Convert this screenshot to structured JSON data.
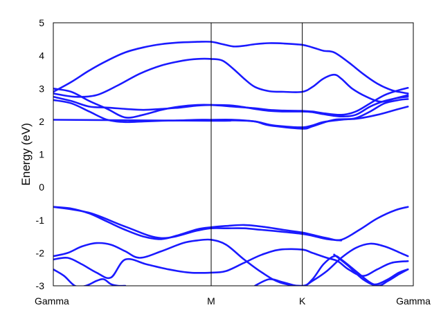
{
  "chart_data": {
    "type": "line",
    "title": "",
    "xlabel": "",
    "ylabel": "Energy (eV)",
    "ylim": [
      -3,
      5
    ],
    "yticks": [
      "5",
      "4",
      "3",
      "2",
      "1",
      "0",
      "-1",
      "-2",
      "-3"
    ],
    "yticks_values": [
      5,
      4,
      3,
      2,
      1,
      0,
      -1,
      -2,
      -3
    ],
    "xlim": [
      0,
      1
    ],
    "x_high_symmetry": [
      {
        "label": "Gamma",
        "x": 0.0
      },
      {
        "label": "M",
        "x": 0.4385
      },
      {
        "label": "K",
        "x": 0.6916
      },
      {
        "label": "Gamma",
        "x": 1.0
      }
    ],
    "grid": false,
    "line_color": "#1a1aff",
    "frame_color": "#000000",
    "series": [
      {
        "x": [
          0.0,
          0.05,
          0.1,
          0.15,
          0.2,
          0.25,
          0.3,
          0.35,
          0.4,
          0.4385,
          0.47,
          0.5,
          0.53,
          0.56,
          0.6,
          0.64,
          0.6916,
          0.72,
          0.75,
          0.78,
          0.82,
          0.86,
          0.9,
          0.94,
          0.97,
          0.985
        ],
        "values": [
          2.9,
          3.2,
          3.55,
          3.85,
          4.1,
          4.25,
          4.35,
          4.4,
          4.42,
          4.42,
          4.35,
          4.28,
          4.3,
          4.35,
          4.38,
          4.37,
          4.33,
          4.25,
          4.15,
          4.1,
          3.8,
          3.45,
          3.15,
          2.95,
          2.88,
          2.85
        ]
      },
      {
        "x": [
          0.0,
          0.06,
          0.12,
          0.18,
          0.24,
          0.3,
          0.36,
          0.4,
          0.4385,
          0.47,
          0.5,
          0.53,
          0.56,
          0.6,
          0.64,
          0.6916,
          0.72,
          0.75,
          0.78,
          0.8,
          0.83,
          0.87,
          0.91,
          0.95,
          0.985
        ],
        "values": [
          2.85,
          2.75,
          2.8,
          3.1,
          3.45,
          3.7,
          3.85,
          3.9,
          3.9,
          3.85,
          3.6,
          3.3,
          3.05,
          2.92,
          2.9,
          2.9,
          3.05,
          3.3,
          3.42,
          3.3,
          3.0,
          2.75,
          2.6,
          2.7,
          2.8
        ]
      },
      {
        "x": [
          0.0,
          0.05,
          0.1,
          0.15,
          0.2,
          0.25,
          0.3,
          0.35,
          0.4,
          0.4385,
          0.5,
          0.56,
          0.6,
          0.64,
          0.6916,
          0.72,
          0.75,
          0.8,
          0.84,
          0.88,
          0.92,
          0.96,
          0.985
        ],
        "values": [
          3.0,
          2.9,
          2.62,
          2.38,
          2.12,
          2.2,
          2.35,
          2.45,
          2.5,
          2.5,
          2.45,
          2.4,
          2.35,
          2.33,
          2.32,
          2.3,
          2.25,
          2.2,
          2.3,
          2.55,
          2.8,
          2.95,
          3.02
        ]
      },
      {
        "x": [
          0.0,
          0.05,
          0.1,
          0.15,
          0.2,
          0.25,
          0.3,
          0.35,
          0.4,
          0.4385,
          0.5,
          0.56,
          0.6,
          0.64,
          0.6916,
          0.72,
          0.75,
          0.8,
          0.84,
          0.88,
          0.92,
          0.96,
          0.985
        ],
        "values": [
          2.75,
          2.62,
          2.45,
          2.42,
          2.38,
          2.35,
          2.38,
          2.42,
          2.48,
          2.5,
          2.48,
          2.38,
          2.32,
          2.3,
          2.3,
          2.28,
          2.22,
          2.15,
          2.2,
          2.45,
          2.62,
          2.72,
          2.75
        ]
      },
      {
        "x": [
          0.0,
          0.05,
          0.1,
          0.15,
          0.2,
          0.25,
          0.3,
          0.35,
          0.4,
          0.4385,
          0.5,
          0.56,
          0.6,
          0.64,
          0.6916,
          0.72,
          0.75,
          0.8,
          0.84,
          0.88,
          0.92,
          0.96,
          0.985
        ],
        "values": [
          2.65,
          2.55,
          2.3,
          2.05,
          1.98,
          2.0,
          2.02,
          2.03,
          2.05,
          2.05,
          2.05,
          2.0,
          1.9,
          1.85,
          1.82,
          1.88,
          1.98,
          2.05,
          2.1,
          2.3,
          2.55,
          2.65,
          2.68
        ]
      },
      {
        "x": [
          0.0,
          0.4385,
          0.5,
          0.56,
          0.6,
          0.6916,
          0.72,
          0.78,
          0.84,
          0.9,
          0.95,
          0.985
        ],
        "values": [
          2.05,
          2.02,
          2.03,
          2.0,
          1.88,
          1.78,
          1.85,
          2.05,
          2.08,
          2.2,
          2.35,
          2.45
        ]
      },
      {
        "x": [
          0.0,
          0.05,
          0.1,
          0.15,
          0.2,
          0.25,
          0.3,
          0.35,
          0.4,
          0.4385,
          0.48,
          0.53,
          0.58,
          0.64,
          0.6916,
          0.72,
          0.76,
          0.8,
          0.85,
          0.9,
          0.95,
          0.985
        ],
        "values": [
          -0.6,
          -0.65,
          -0.8,
          -1.05,
          -1.3,
          -1.5,
          -1.58,
          -1.45,
          -1.28,
          -1.22,
          -1.18,
          -1.15,
          -1.2,
          -1.3,
          -1.38,
          -1.45,
          -1.55,
          -1.6,
          -1.3,
          -0.95,
          -0.7,
          -0.6
        ]
      },
      {
        "x": [
          0.0,
          0.1,
          0.2,
          0.3,
          0.4,
          0.4385,
          0.48,
          0.53,
          0.58,
          0.64,
          0.6916,
          0.72,
          0.76,
          0.8
        ],
        "values": [
          -0.6,
          -0.78,
          -1.2,
          -1.55,
          -1.32,
          -1.25,
          -1.25,
          -1.25,
          -1.3,
          -1.36,
          -1.42,
          -1.48,
          -1.58,
          -1.62
        ]
      },
      {
        "x": [
          0.0,
          0.04,
          0.08,
          0.12,
          0.16,
          0.2,
          0.24,
          0.3,
          0.36,
          0.4,
          0.4385,
          0.48,
          0.53,
          0.58,
          0.63,
          0.6916,
          0.72,
          0.76,
          0.8,
          0.84,
          0.88,
          0.92,
          0.96,
          0.985
        ],
        "values": [
          -2.1,
          -2.0,
          -1.8,
          -1.7,
          -1.75,
          -1.95,
          -2.15,
          -1.95,
          -1.7,
          -1.62,
          -1.6,
          -1.75,
          -2.2,
          -2.6,
          -2.9,
          -3.0,
          -2.85,
          -2.55,
          -2.15,
          -1.85,
          -1.72,
          -1.8,
          -1.98,
          -2.1
        ]
      },
      {
        "x": [
          0.0,
          0.04,
          0.08,
          0.12,
          0.16,
          0.2,
          0.26,
          0.32,
          0.38,
          0.4385,
          0.48,
          0.53,
          0.58,
          0.63,
          0.6916,
          0.72,
          0.76,
          0.79,
          0.82,
          0.86,
          0.9,
          0.94,
          0.985
        ],
        "values": [
          -2.2,
          -2.15,
          -2.35,
          -2.6,
          -2.75,
          -2.2,
          -2.35,
          -2.5,
          -2.6,
          -2.6,
          -2.55,
          -2.3,
          -2.05,
          -1.9,
          -1.9,
          -2.0,
          -2.15,
          -2.25,
          -2.5,
          -2.7,
          -2.5,
          -2.3,
          -2.25
        ]
      },
      {
        "x": [
          0.0,
          0.03,
          0.06,
          0.09,
          0.12,
          0.14,
          0.16,
          0.18,
          0.2
        ],
        "values": [
          -2.5,
          -2.7,
          -3.0,
          -3.0,
          -2.85,
          -2.8,
          -2.95,
          -3.0,
          -3.0
        ]
      },
      {
        "x": [
          0.56,
          0.6,
          0.64,
          0.6916,
          0.72,
          0.75,
          0.78,
          0.8,
          0.84,
          0.88,
          0.9,
          0.93,
          0.96,
          0.985
        ],
        "values": [
          -3.0,
          -2.8,
          -2.9,
          -3.02,
          -2.8,
          -2.35,
          -2.1,
          -2.2,
          -2.55,
          -2.9,
          -2.95,
          -2.8,
          -2.6,
          -2.5
        ]
      },
      {
        "x": [
          0.78,
          0.82,
          0.86,
          0.9,
          0.93,
          0.96,
          0.985
        ],
        "values": [
          -2.05,
          -2.4,
          -2.8,
          -3.0,
          -2.85,
          -2.65,
          -2.5
        ]
      }
    ]
  }
}
